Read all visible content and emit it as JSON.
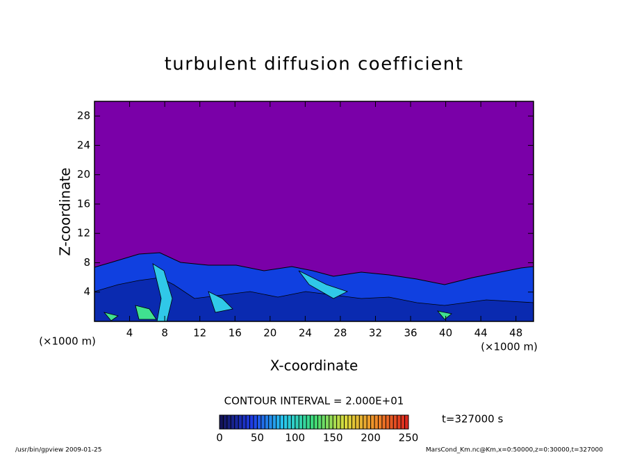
{
  "chart_data": {
    "type": "contour",
    "title": "turbulent diffusion coefficient",
    "x_label": "X-coordinate",
    "y_label": "Z-coordinate",
    "x_unit": "(×1000 m)",
    "y_unit": "(×1000 m)",
    "xlim": [
      0,
      50
    ],
    "xticks": [
      4,
      8,
      12,
      16,
      20,
      24,
      28,
      32,
      36,
      40,
      44,
      48
    ],
    "ylim": [
      0,
      30
    ],
    "yticks": [
      4,
      8,
      12,
      16,
      20,
      24,
      28
    ],
    "contour_interval": "CONTOUR INTERVAL = 2.000E+01",
    "colorbar": {
      "lim": [
        0,
        250
      ],
      "ticks": [
        0,
        50,
        100,
        150,
        200,
        250
      ]
    },
    "time": "t=327000 s",
    "footer_left": "/usr/bin/gpview  2009-01-25",
    "footer_right": "MarsCond_Km.nc@Km,x=0:50000,z=0:30000,t=327000"
  }
}
